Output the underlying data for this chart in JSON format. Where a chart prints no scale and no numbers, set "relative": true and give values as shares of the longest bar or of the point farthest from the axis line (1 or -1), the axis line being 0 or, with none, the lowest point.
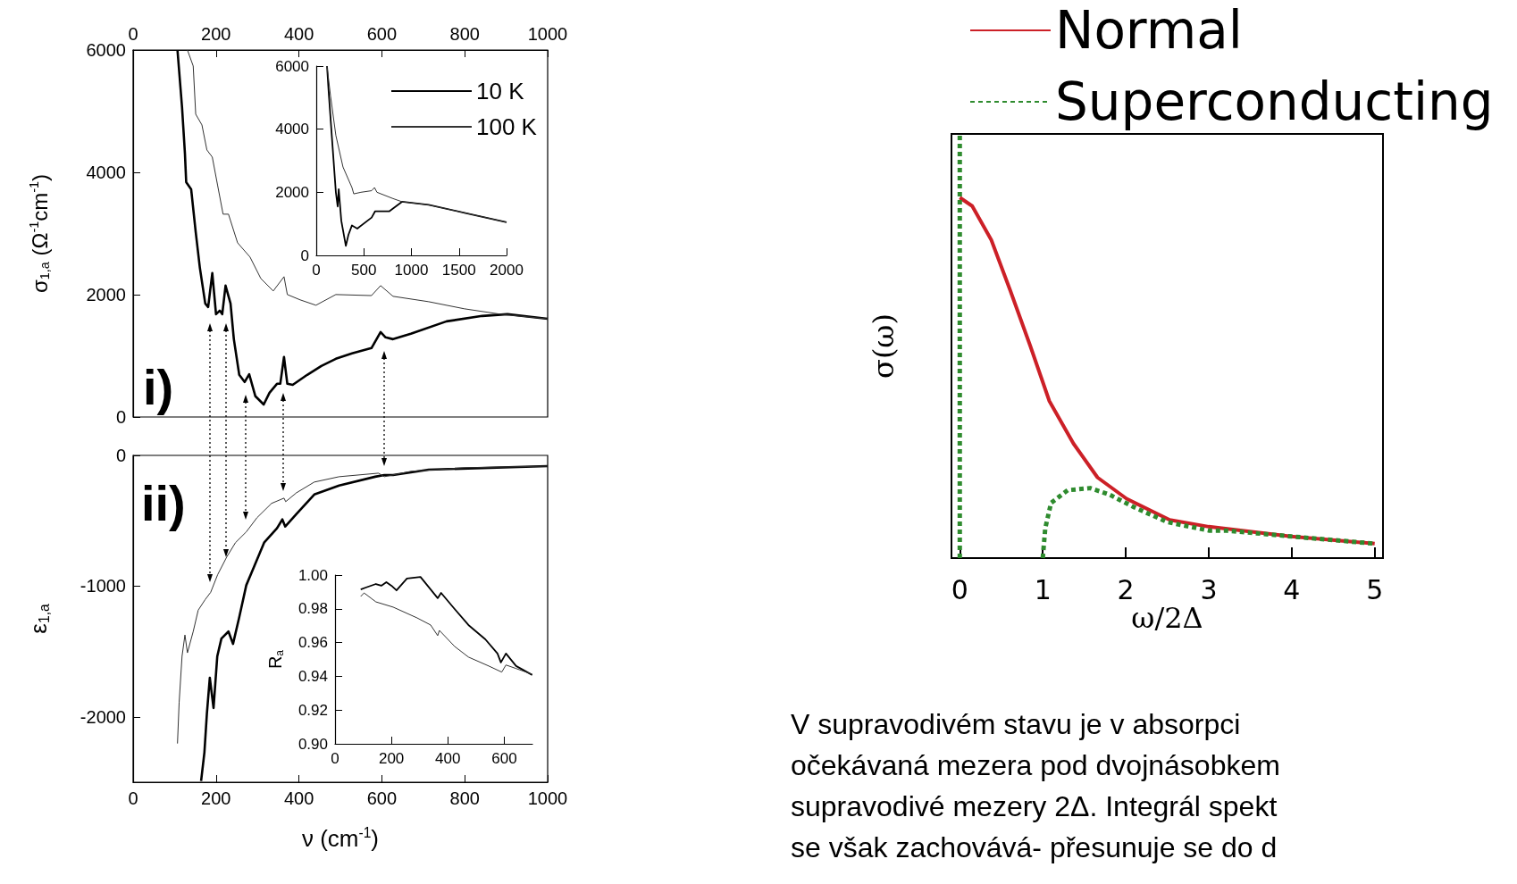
{
  "chart_data": [
    {
      "type": "line",
      "ylabel": "σ$_{1,a}$ (Ω$^{-1}$cm$^{-1}$)",
      "xlim": [
        0,
        1000
      ],
      "xticks": [
        0,
        200,
        400,
        600,
        800,
        1000
      ],
      "ylim": [
        0,
        6000
      ],
      "yticks": [
        0,
        2000,
        4000,
        6000
      ],
      "legend": "top right",
      "annotations": [
        "i)"
      ],
      "series": [
        {
          "name": "10 K",
          "color": "#000000",
          "x": [
            107,
            118,
            125,
            128,
            140,
            151,
            161,
            174,
            181,
            191,
            200,
            209,
            215,
            223,
            235,
            243,
            256,
            269,
            280,
            295,
            315,
            329,
            347,
            355,
            364,
            372,
            385,
            420,
            454,
            489,
            528,
            575,
            597,
            609,
            627,
            670,
            756,
            842,
            903,
            1000
          ],
          "values": [
            6000,
            5066,
            4308,
            3841,
            3724,
            3024,
            2440,
            1856,
            1798,
            2352,
            1681,
            1740,
            1681,
            2148,
            1856,
            1272,
            689,
            572,
            700,
            339,
            204,
            397,
            543,
            543,
            981,
            543,
            525,
            689,
            835,
            951,
            1039,
            1127,
            1389,
            1302,
            1272,
            1360,
            1564,
            1652,
            1681,
            1605
          ]
        },
        {
          "name": "100 K",
          "color": "#333333",
          "x": [
            131,
            145,
            151,
            166,
            178,
            191,
            204,
            217,
            230,
            252,
            282,
            308,
            338,
            364,
            372,
            403,
            441,
            489,
            575,
            597,
            627,
            713,
            799,
            886,
            1000
          ],
          "values": [
            6000,
            5738,
            4950,
            4775,
            4366,
            4249,
            3782,
            3316,
            3316,
            2848,
            2615,
            2265,
            2060,
            2294,
            2002,
            1915,
            1827,
            2002,
            1985,
            2148,
            1973,
            1885,
            1769,
            1681,
            1605
          ]
        }
      ]
    },
    {
      "type": "line",
      "xlim": [
        0,
        2000
      ],
      "xticks": [
        0,
        500,
        1000,
        1500,
        2000
      ],
      "ylim": [
        0,
        6000
      ],
      "yticks": [
        0,
        2000,
        4000,
        6000
      ],
      "series": [
        {
          "color": "#000000",
          "x": [
            113,
            131,
            169,
            206,
            225,
            236,
            263,
            311,
            338,
            375,
            431,
            582,
            619,
            769,
            901,
            1182,
            1557,
            2000
          ],
          "values": [
            6000,
            5150,
            3550,
            2000,
            1550,
            2100,
            1100,
            300,
            650,
            950,
            850,
            1200,
            1400,
            1400,
            1700,
            1600,
            1350,
            1050
          ]
        },
        {
          "color": "#333333",
          "x": [
            113,
            150,
            206,
            281,
            375,
            394,
            469,
            582,
            612,
            638,
            807,
            901,
            1182,
            1557,
            2000
          ],
          "values": [
            6000,
            5050,
            3800,
            2800,
            2150,
            1950,
            2000,
            2050,
            2150,
            2000,
            1800,
            1700,
            1600,
            1350,
            1050
          ]
        }
      ]
    },
    {
      "type": "line",
      "xlabel": "ν (cm$^{-1}$)",
      "ylabel": "ε$_{1,a}$",
      "xlim": [
        0,
        1000
      ],
      "xticks": [
        0,
        200,
        400,
        600,
        800,
        1000
      ],
      "ylim": [
        -2500,
        0
      ],
      "yticks": [
        -2000,
        -1000,
        0
      ],
      "annotations": [
        "ii)"
      ],
      "series": [
        {
          "color": "#000000",
          "x": [
            164,
            172,
            178,
            185,
            194,
            203,
            213,
            230,
            241,
            256,
            273,
            291,
            316,
            347,
            360,
            367,
            394,
            437,
            497,
            584,
            606,
            627,
            713,
            1000
          ],
          "values": [
            -2490,
            -2272,
            -1973,
            -1701,
            -1932,
            -1537,
            -1401,
            -1347,
            -1442,
            -1238,
            -993,
            -857,
            -667,
            -558,
            -490,
            -544,
            -449,
            -299,
            -231,
            -163,
            -150,
            -150,
            -109,
            -82
          ]
        },
        {
          "color": "#333333",
          "x": [
            107,
            111,
            118,
            125,
            131,
            145,
            157,
            174,
            187,
            204,
            226,
            247,
            273,
            299,
            334,
            364,
            368,
            394,
            437,
            497,
            592,
            606,
            670,
            799,
            1000
          ],
          "values": [
            -2204,
            -1891,
            -1537,
            -1374,
            -1510,
            -1347,
            -1184,
            -1102,
            -1048,
            -912,
            -776,
            -667,
            -585,
            -476,
            -367,
            -327,
            -354,
            -286,
            -204,
            -163,
            -136,
            -163,
            -122,
            -95,
            -82
          ]
        }
      ]
    },
    {
      "type": "line",
      "ylabel": "R$_{a}$",
      "xlim": [
        0,
        700
      ],
      "xticks": [
        0,
        200,
        400,
        600
      ],
      "ylim": [
        0.9,
        1.0
      ],
      "yticks": [
        {
          "value": 0.9,
          "label": "0.90"
        },
        {
          "value": 0.92,
          "label": "0.92"
        },
        {
          "value": 0.94,
          "label": "0.94"
        },
        {
          "value": 0.96,
          "label": "0.96"
        },
        {
          "value": 0.98,
          "label": "0.98"
        },
        {
          "value": 1.0,
          "label": "1.00"
        }
      ],
      "series": [
        {
          "color": "#000000",
          "x": [
            91,
            109,
            145,
            164,
            182,
            200,
            218,
            255,
            303,
            339,
            364,
            376,
            424,
            473,
            533,
            576,
            588,
            606,
            642,
            699
          ],
          "values": [
            0.9915,
            0.9926,
            0.9947,
            0.9937,
            0.9958,
            0.9937,
            0.9909,
            0.9979,
            0.9989,
            0.9915,
            0.9863,
            0.9894,
            0.9799,
            0.9704,
            0.9619,
            0.9535,
            0.9482,
            0.9535,
            0.9461,
            0.9408
          ]
        },
        {
          "color": "#333333",
          "x": [
            91,
            103,
            145,
            206,
            291,
            339,
            364,
            370,
            424,
            473,
            545,
            591,
            606,
            642,
            699
          ],
          "values": [
            0.9873,
            0.9894,
            0.9841,
            0.981,
            0.9746,
            0.9704,
            0.9641,
            0.9672,
            0.9577,
            0.9514,
            0.9461,
            0.9425,
            0.9467,
            0.9446,
            0.9412
          ]
        }
      ]
    },
    {
      "type": "line",
      "relative": true,
      "xlabel": "ω/2Δ",
      "ylabel": "σ(ω)",
      "xlim": [
        -0.1,
        5.1
      ],
      "xticks": [
        0,
        1,
        2,
        3,
        4,
        5
      ],
      "legend": "top",
      "annotations": [
        "V supravodivém stavu je v absorpci",
        "očekávaná mezera pod dvojnásobkem",
        "supravodivé mezery 2Δ. Integrál spekt",
        "se však zachovává- přesunuje se do d"
      ],
      "series": [
        {
          "name": "Normal",
          "color": "#cc2027",
          "line_style": "solid",
          "x": [
            0,
            0.15,
            0.38,
            0.61,
            0.85,
            1.08,
            1.37,
            1.66,
            2.01,
            2.53,
            3.0,
            3.99,
            5.0
          ],
          "values": [
            0.85,
            0.83,
            0.75,
            0.63,
            0.5,
            0.37,
            0.27,
            0.19,
            0.14,
            0.09,
            0.074,
            0.051,
            0.034
          ]
        },
        {
          "name": "Superconducting",
          "color": "#2e8b2e",
          "line_style": "dotted",
          "x": [
            0,
            0,
            0.5,
            1,
            1.03,
            1.1,
            1.3,
            1.57,
            1.8,
            2.1,
            2.5,
            3.0,
            3.2,
            4,
            5
          ],
          "values": [
            0,
            1,
            null,
            0,
            0.07,
            0.13,
            0.16,
            0.165,
            0.15,
            0.12,
            0.085,
            0.065,
            0.065,
            0.051,
            0.034
          ]
        }
      ]
    }
  ]
}
